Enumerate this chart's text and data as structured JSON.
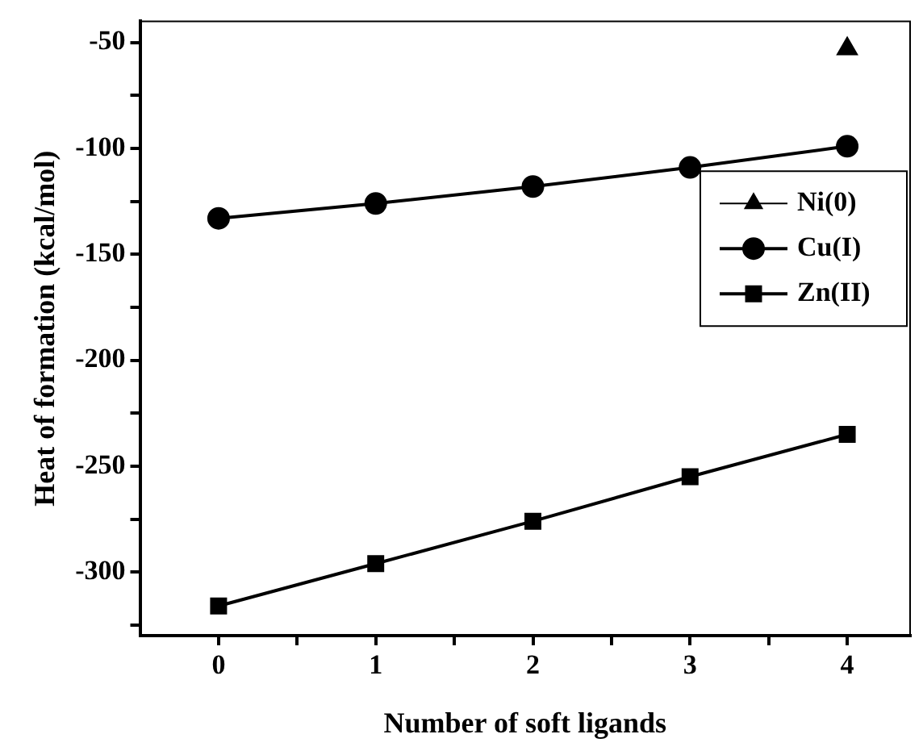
{
  "chart_data": {
    "type": "line",
    "xlabel": "Number of soft ligands",
    "ylabel": "Heat of formation (kcal/mol)",
    "x": [
      0,
      1,
      2,
      3,
      4
    ],
    "series": [
      {
        "name": "Ni(0)",
        "color": "#000000",
        "marker": "triangle",
        "values": [
          null,
          null,
          null,
          null,
          -53
        ]
      },
      {
        "name": "Cu(I)",
        "color": "#000000",
        "marker": "circle",
        "values": [
          -133,
          -126,
          -118,
          -109,
          -99
        ]
      },
      {
        "name": "Zn(II)",
        "color": "#000000",
        "marker": "square",
        "values": [
          -316,
          -296,
          -276,
          -255,
          -235
        ]
      }
    ],
    "xlim": [
      -0.5,
      4.4
    ],
    "xticks": [
      0,
      {
        "value": 0.5,
        "label": null
      },
      1,
      {
        "value": 1.5,
        "label": null
      },
      2,
      {
        "value": 2.5,
        "label": null
      },
      3,
      {
        "value": 3.5,
        "label": null
      },
      4
    ],
    "ylim": [
      -330,
      -40
    ],
    "yticks": [
      {
        "value": -325,
        "label": null
      },
      -300,
      {
        "value": -275,
        "label": null
      },
      -250,
      {
        "value": -225,
        "label": null
      },
      -200,
      {
        "value": -175,
        "label": null
      },
      -150,
      {
        "value": -125,
        "label": null
      },
      -100,
      {
        "value": -75,
        "label": null
      },
      -50
    ],
    "grid": false,
    "legend": "right",
    "line_style": "solid"
  }
}
